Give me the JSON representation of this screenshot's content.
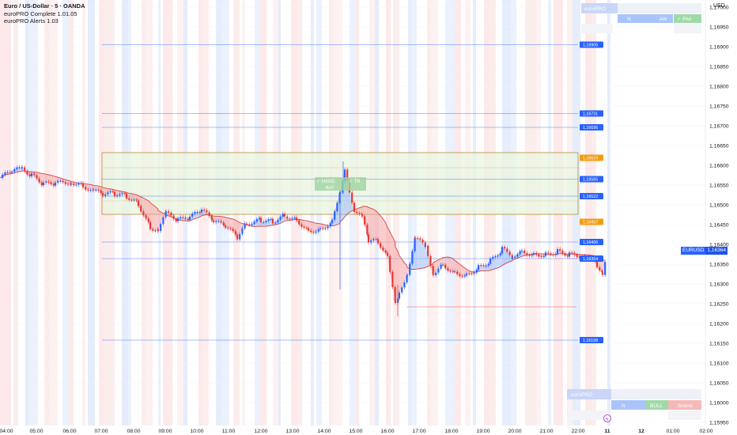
{
  "legend": {
    "title": "Euro / US-Dollar · 5 · OANDA",
    "indicator1": "euroPRO Complete 1.01.05",
    "indicator2": "euroPRO Alerts 1.03"
  },
  "axis": {
    "currency": "USD",
    "price_ticks": [
      "1,17000",
      "1,16950",
      "1,16900",
      "1,16850",
      "1,16800",
      "1,16750",
      "1,16700",
      "1,16650",
      "1,16600",
      "1,16550",
      "1,16500",
      "1,16450",
      "1,16400",
      "1,16350",
      "1,16300",
      "1,16250",
      "1,16200",
      "1,16150",
      "1,16100",
      "1,16050",
      "1,16000",
      "1,15950"
    ],
    "time_ticks": [
      "04:00",
      "05:00",
      "06:00",
      "07:00",
      "08:00",
      "09:00",
      "10:00",
      "11:00",
      "12:00",
      "13:00",
      "14:00",
      "15:00",
      "16:00",
      "17:00",
      "18:00",
      "19:00",
      "20:00",
      "21:00",
      "22:00",
      "11",
      "12",
      "01:00",
      "02:00"
    ]
  },
  "current_price": {
    "symbol": "EURUSD",
    "value": "1,16364"
  },
  "level_labels": [
    "1,16905",
    "1,16731",
    "1,16696",
    "1,16619",
    "1,16565",
    "1,16522",
    "1,16457",
    "1,16406",
    "1,16364",
    "1,16158"
  ],
  "top_panel": {
    "cells": [
      "euroPRO",
      "N",
      "AN",
      "✓ Pivt"
    ]
  },
  "bottom_panel": {
    "cells": [
      "euroPRO",
      "N",
      "BULL",
      "Scenic"
    ]
  },
  "signal_box": {
    "text1": "✓ HAND",
    "text2": "✓ TR",
    "text3": "BUY"
  }
}
